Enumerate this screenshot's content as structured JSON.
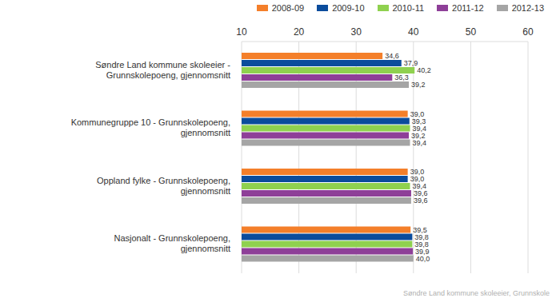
{
  "chart_data": {
    "type": "bar",
    "orientation": "horizontal",
    "categories": [
      "Søndre Land kommune skoleeier - Grunnskolepoeng, gjennomsnitt",
      "Kommunegruppe 10 - Grunnskolepoeng, gjennomsnitt",
      "Oppland fylke - Grunnskolepoeng, gjennomsnitt",
      "Nasjonalt - Grunnskolepoeng, gjennomsnitt"
    ],
    "series": [
      {
        "name": "2008-09",
        "color": "#f47f2a",
        "values": [
          34.6,
          39.0,
          39.0,
          39.5
        ],
        "value_labels": [
          "34,6",
          "39,0",
          "39,0",
          "39,5"
        ]
      },
      {
        "name": "2009-10",
        "color": "#0b4c9c",
        "values": [
          37.9,
          39.3,
          39.0,
          39.8
        ],
        "value_labels": [
          "37,9",
          "39,3",
          "39,0",
          "39,8"
        ]
      },
      {
        "name": "2010-11",
        "color": "#8fd14f",
        "values": [
          40.2,
          39.4,
          39.4,
          39.8
        ],
        "value_labels": [
          "40,2",
          "39,4",
          "39,4",
          "39,8"
        ]
      },
      {
        "name": "2011-12",
        "color": "#8e3f98",
        "values": [
          36.3,
          39.2,
          39.6,
          39.9
        ],
        "value_labels": [
          "36,3",
          "39,2",
          "39,6",
          "39,9"
        ]
      },
      {
        "name": "2012-13",
        "color": "#a5a5a5",
        "values": [
          39.2,
          39.4,
          39.6,
          40.0
        ],
        "value_labels": [
          "39,2",
          "39,4",
          "39,6",
          "40,0"
        ]
      }
    ],
    "xlim": [
      10,
      60
    ],
    "xticks": [
      10,
      20,
      30,
      40,
      50,
      60
    ],
    "grid": true,
    "data_labels": true,
    "legend": "top right",
    "annotations": [
      "Søndre Land kommune skoleeier, Grunnskole"
    ]
  }
}
